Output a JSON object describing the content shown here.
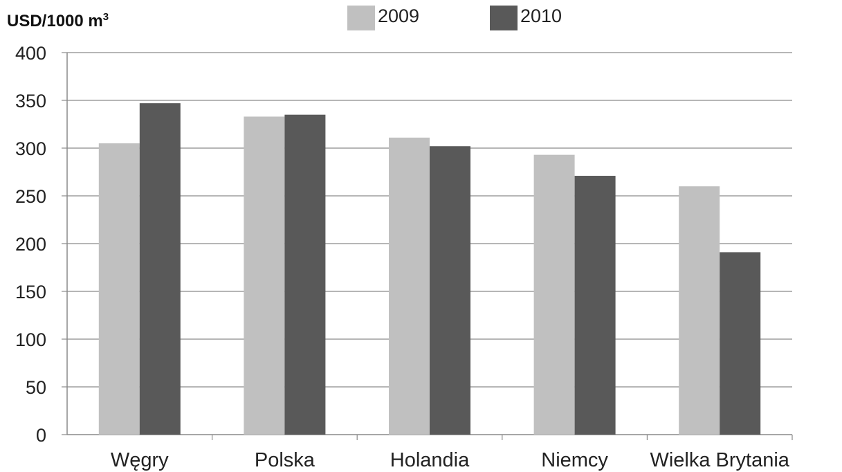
{
  "chart_data": {
    "type": "bar",
    "ylabel": {
      "main": "USD/1000 m",
      "sup": "3"
    },
    "categories": [
      "Węgry",
      "Polska",
      "Holandia",
      "Niemcy",
      "Wielka Brytania"
    ],
    "series": [
      {
        "name": "2009",
        "color": "#c0c0c0",
        "values": [
          305,
          333,
          311,
          293,
          260
        ]
      },
      {
        "name": "2010",
        "color": "#595959",
        "values": [
          347,
          335,
          302,
          271,
          191
        ]
      }
    ],
    "ylim": [
      0,
      400
    ],
    "yticks": [
      0,
      50,
      100,
      150,
      200,
      250,
      300,
      350,
      400
    ],
    "grid": true,
    "legend_position": "top"
  }
}
